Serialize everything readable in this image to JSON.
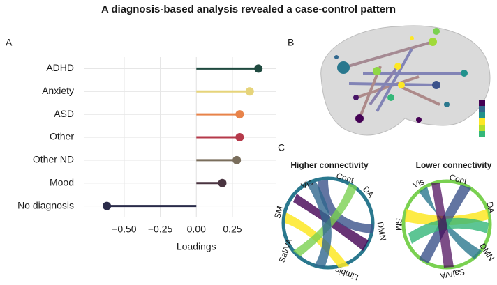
{
  "title": "A diagnosis-based analysis revealed a case-control pattern",
  "panels": [
    "A",
    "B",
    "C"
  ],
  "chart_data": {
    "type": "lollipop",
    "xlabel": "Loadings",
    "categories": [
      "ADHD",
      "Anxiety",
      "ASD",
      "Other",
      "Other ND",
      "Mood",
      "No diagnosis"
    ],
    "values": [
      0.43,
      0.37,
      0.3,
      0.3,
      0.28,
      0.18,
      -0.62
    ],
    "colors": [
      "#1f4a3f",
      "#e6d47a",
      "#e8834a",
      "#b5394a",
      "#7a6e5c",
      "#4a3440",
      "#2a2b4a"
    ],
    "xlim": [
      -0.78,
      0.55
    ],
    "xticks": [
      {
        "value": -0.5,
        "label": "−0.50"
      },
      {
        "value": -0.25,
        "label": "−0.25"
      },
      {
        "value": 0,
        "label": "0.00"
      },
      0.25
    ],
    "grid": true
  },
  "panel_c": [
    {
      "title": "Higher connectivity",
      "labels": [
        "Vis",
        "Cont",
        "DA",
        "DMN",
        "Limbic",
        "Sal/VA",
        "SM"
      ]
    },
    {
      "title": "Lower connectivity",
      "labels": [
        "Vis",
        "Cont",
        "DA",
        "DMN",
        "Sal/VA",
        "SM"
      ]
    }
  ]
}
